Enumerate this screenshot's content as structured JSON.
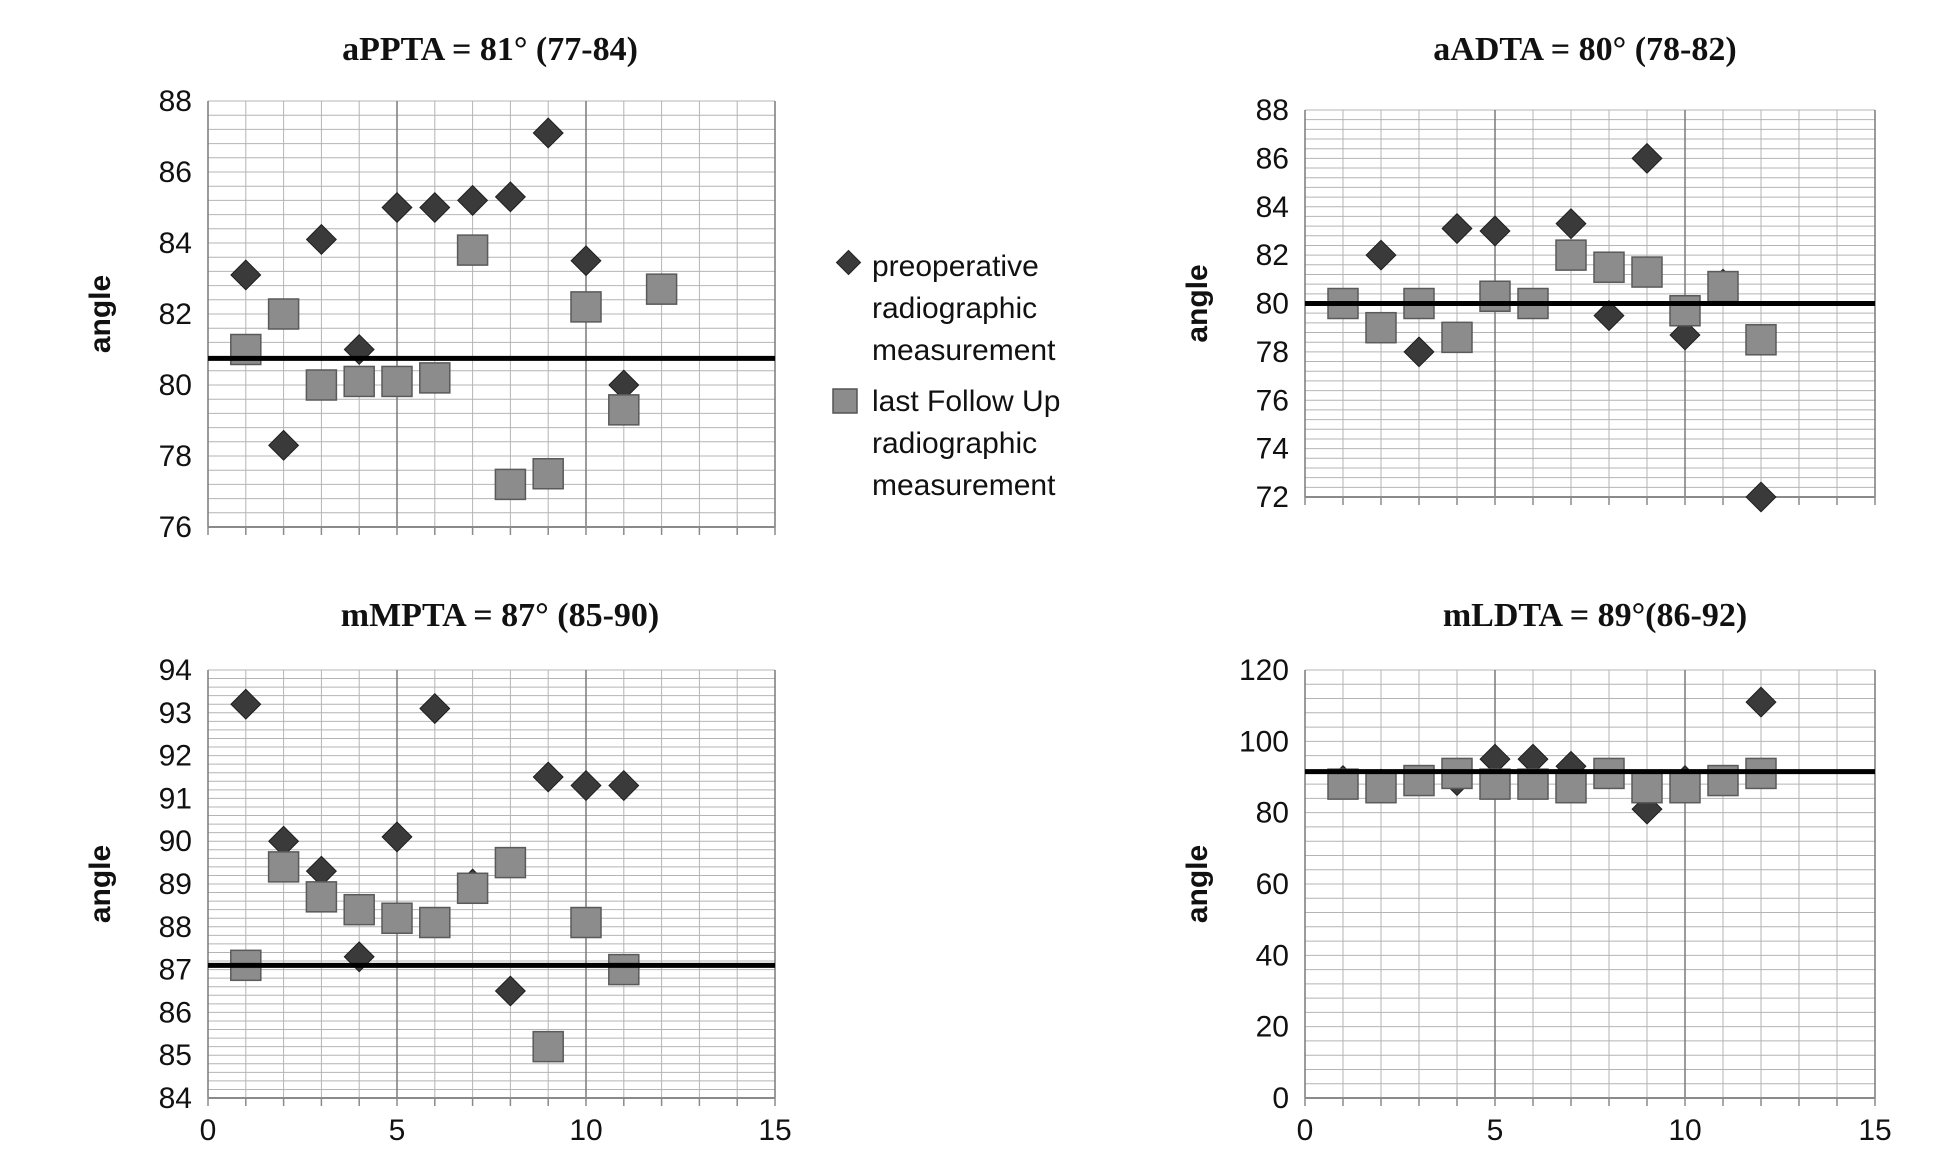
{
  "legend": {
    "series_pre": [
      "preoperative",
      "radiographic",
      "measurement"
    ],
    "series_post": [
      "last Follow Up",
      "radiographic",
      "measurement"
    ]
  },
  "colors": {
    "pre": "#3a3a3a",
    "post": "#8c8c8c",
    "mean_line": "#000000",
    "grid": "#b4b4b4"
  },
  "chart_data": [
    {
      "type": "scatter",
      "title": "aPPTA  = 81° (77-84)",
      "ylabel": "angle",
      "xlim": [
        0,
        15
      ],
      "ylim": [
        76,
        88
      ],
      "ytick_step": 2,
      "minor_step": 0.4,
      "xticks": [],
      "yticks": [
        "88",
        "86",
        "84",
        "82",
        "80",
        "78",
        "76"
      ],
      "mean": 80.75,
      "series": [
        {
          "name": "preoperative radiographic measurement",
          "x": [
            1,
            2,
            3,
            4,
            5,
            6,
            7,
            8,
            9,
            10,
            11
          ],
          "y": [
            83.1,
            78.3,
            84.1,
            81.0,
            85.0,
            85.0,
            85.2,
            85.3,
            87.1,
            83.5,
            80.0
          ]
        },
        {
          "name": "last Follow Up radiographic measurement",
          "x": [
            1,
            2,
            3,
            4,
            5,
            6,
            7,
            8,
            9,
            10,
            11,
            12
          ],
          "y": [
            81.0,
            82.0,
            80.0,
            80.1,
            80.1,
            80.2,
            83.8,
            77.2,
            77.5,
            82.2,
            79.3,
            82.7
          ]
        }
      ]
    },
    {
      "type": "scatter",
      "title": "aADTA  = 80° (78-82)",
      "ylabel": "angle",
      "xlim": [
        0,
        15
      ],
      "ylim": [
        72,
        88
      ],
      "ytick_step": 2,
      "minor_step": 0.4,
      "xticks": [],
      "yticks": [
        "88",
        "86",
        "84",
        "82",
        "80",
        "78",
        "76",
        "74",
        "72"
      ],
      "mean": 80.0,
      "series": [
        {
          "name": "preoperative radiographic measurement",
          "x": [
            1,
            2,
            3,
            4,
            5,
            6,
            7,
            8,
            9,
            10,
            11,
            12
          ],
          "y": [
            80.0,
            82.0,
            78.0,
            83.1,
            83.0,
            80.0,
            83.3,
            79.5,
            86.0,
            78.7,
            80.8,
            72.0
          ]
        },
        {
          "name": "last Follow Up radiographic measurement",
          "x": [
            1,
            2,
            3,
            4,
            5,
            6,
            7,
            8,
            9,
            10,
            11,
            12
          ],
          "y": [
            80.0,
            79.0,
            80.0,
            78.6,
            80.3,
            80.0,
            82.0,
            81.5,
            81.3,
            79.7,
            80.7,
            78.5
          ]
        }
      ]
    },
    {
      "type": "scatter",
      "title": "mMPTA  = 87° (85-90)",
      "ylabel": "angle",
      "xlim": [
        0,
        15
      ],
      "ylim": [
        84,
        94
      ],
      "ytick_step": 1,
      "minor_step": 0.2,
      "xticks": [
        "0",
        "5",
        "10",
        "15"
      ],
      "yticks": [
        "94",
        "93",
        "92",
        "91",
        "90",
        "89",
        "88",
        "87",
        "86",
        "85",
        "84"
      ],
      "mean": 87.1,
      "series": [
        {
          "name": "preoperative radiographic measurement",
          "x": [
            1,
            2,
            3,
            4,
            5,
            6,
            7,
            8,
            9,
            10,
            11
          ],
          "y": [
            93.2,
            90.0,
            89.3,
            87.3,
            90.1,
            93.1,
            89.0,
            86.5,
            91.5,
            91.3,
            91.3
          ]
        },
        {
          "name": "last Follow Up radiographic measurement",
          "x": [
            1,
            2,
            3,
            4,
            5,
            6,
            7,
            8,
            9,
            10,
            11
          ],
          "y": [
            87.1,
            89.4,
            88.7,
            88.4,
            88.2,
            88.1,
            88.9,
            89.5,
            85.2,
            88.1,
            87.0
          ]
        }
      ]
    },
    {
      "type": "scatter",
      "title": "mLDTA = 89°(86-92)",
      "ylabel": "angle",
      "xlim": [
        0,
        15
      ],
      "ylim": [
        0,
        120
      ],
      "ytick_step": 20,
      "minor_step": 4,
      "xticks": [
        "0",
        "5",
        "10",
        "15"
      ],
      "yticks": [
        "120",
        "100",
        "80",
        "60",
        "40",
        "20",
        "0"
      ],
      "mean": 91.5,
      "series": [
        {
          "name": "preoperative radiographic measurement",
          "x": [
            1,
            2,
            3,
            4,
            5,
            6,
            7,
            8,
            9,
            10,
            11,
            12
          ],
          "y": [
            89,
            88,
            89,
            89,
            95,
            95,
            93,
            91,
            81,
            89,
            89,
            111
          ]
        },
        {
          "name": "last Follow Up radiographic measurement",
          "x": [
            1,
            2,
            3,
            4,
            5,
            6,
            7,
            8,
            9,
            10,
            11,
            12
          ],
          "y": [
            88,
            87,
            89,
            91,
            88,
            88,
            87,
            91,
            87,
            87,
            89,
            91
          ]
        }
      ]
    }
  ]
}
